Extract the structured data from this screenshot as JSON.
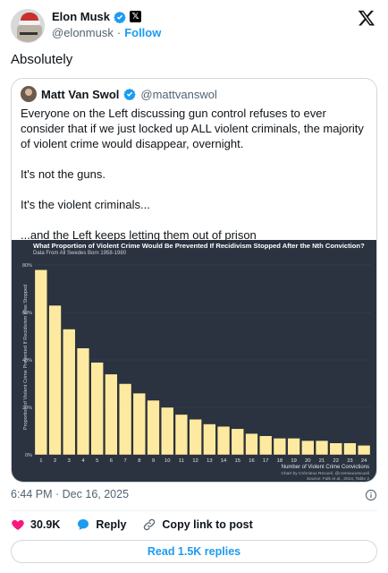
{
  "author": {
    "display_name": "Elon Musk",
    "handle": "@elonmusk",
    "follow_label": "Follow",
    "separator": "·"
  },
  "tweet": {
    "text": "Absolutely",
    "timestamp": "6:44 PM · Dec 16, 2025"
  },
  "quoted": {
    "display_name": "Matt Van Swol",
    "handle": "@mattvanswol",
    "paragraphs": [
      "Everyone on the Left discussing gun control refuses to ever consider that if we just locked up ALL violent criminals, the majority of violent crime would disappear, overnight.",
      "It's not the guns.",
      "It's the violent criminals...",
      "...and the Left keeps letting them out of prison"
    ]
  },
  "chart_data": {
    "type": "bar",
    "title": "What Proportion of Violent Crime Would Be Prevented If Recidivism Stopped After the Nth Conviction?",
    "subtitle": "Data From All Swedes Born 1958-1980",
    "xlabel": "Number of Violent Crime Convictions",
    "ylabel": "Proportion of Violent Crime Prevented If Recidivism Was Stopped",
    "credit_line1": "Chart by Crémieux Recueil, @cremieuxrecueil",
    "credit_line2": "Source: Falk et al., 2014, Table 2",
    "categories": [
      "1",
      "2",
      "3",
      "4",
      "5",
      "6",
      "7",
      "8",
      "9",
      "10",
      "11",
      "12",
      "13",
      "14",
      "15",
      "16",
      "17",
      "18",
      "19",
      "20",
      "21",
      "22",
      "23",
      "24"
    ],
    "values": [
      78,
      63,
      53,
      45,
      39,
      34,
      30,
      26,
      23,
      20,
      17,
      15,
      13,
      12,
      11,
      9,
      8,
      7,
      7,
      6,
      6,
      5,
      5,
      4
    ],
    "yticks": [
      "0%",
      "20%",
      "40%",
      "60%",
      "80%"
    ],
    "ylim": [
      0,
      80
    ],
    "bar_color": "#fdeaa0",
    "background": "#2b3340",
    "grid": true
  },
  "engagement": {
    "likes": "30.9K",
    "reply_label": "Reply",
    "copy_link_label": "Copy link to post",
    "read_replies_label": "Read 1.5K replies"
  },
  "colors": {
    "accent": "#1d9bf0",
    "like": "#f91880",
    "text": "#0f1419",
    "muted": "#536471"
  }
}
